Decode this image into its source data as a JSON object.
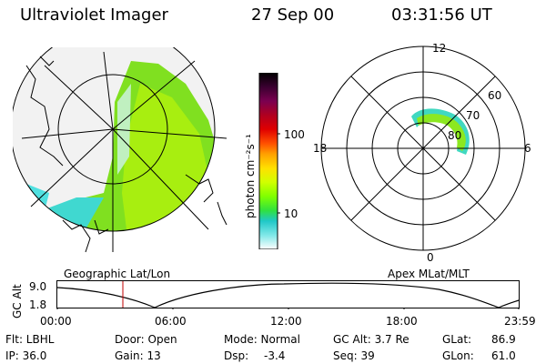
{
  "header": {
    "title": "Ultraviolet Imager",
    "date": "27 Sep 00",
    "time": "03:31:56 UT"
  },
  "colorbar": {
    "unit_label": "photon cm⁻²s⁻¹",
    "ticks": [
      "100",
      "10"
    ],
    "colors": [
      "#000000",
      "#3a0030",
      "#7a0050",
      "#b00020",
      "#e00000",
      "#ff5000",
      "#ffa000",
      "#ffe000",
      "#d0ff00",
      "#80ff00",
      "#30e040",
      "#20c8c8",
      "#60e0e0",
      "#ffffff"
    ]
  },
  "left_map": {
    "caption": "Geographic Lat/Lon"
  },
  "right_map": {
    "caption": "Apex MLat/MLT",
    "mlt_labels": {
      "top": "12",
      "right": "6",
      "bottom": "0",
      "left": "18"
    },
    "lat_labels": [
      "60",
      "70",
      "80"
    ]
  },
  "timeline": {
    "ylabel": "GC Alt",
    "yticks": [
      "9.0",
      "1.8"
    ],
    "xticks": [
      "00:00",
      "06:00",
      "12:00",
      "18:00",
      "23:59"
    ],
    "cursor_color": "#c00000"
  },
  "info": {
    "flt": "Flt: LBHL",
    "door": "Door: Open",
    "mode": "Mode: Normal",
    "gcalt": "GC Alt: 3.7 Re",
    "glat_label": "GLat:",
    "glat_value": "86.9",
    "ip": "IP: 36.0",
    "gain": "Gain: 13",
    "dsp_label": "Dsp:",
    "dsp_value": "-3.4",
    "seq": "Seq: 39",
    "glon_label": "GLon:",
    "glon_value": "61.0"
  }
}
